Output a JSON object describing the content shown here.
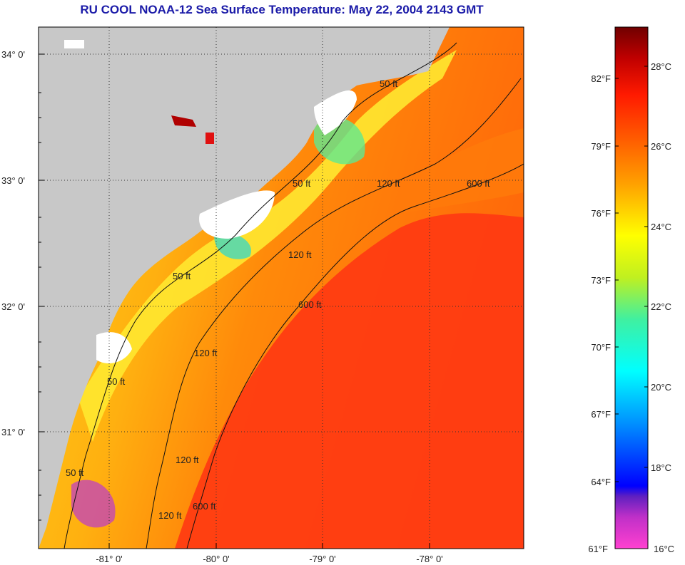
{
  "title": "RU COOL  NOAA-12  Sea Surface Temperature:  May 22, 2004 2143 GMT",
  "map": {
    "lat_labels": [
      "34° 0'",
      "33° 0'",
      "32° 0'",
      "31° 0'"
    ],
    "lon_labels": [
      "-81° 0'",
      "-80° 0'",
      "-79° 0'",
      "-78° 0'"
    ],
    "contour_labels": [
      "50 ft",
      "50 ft",
      "50 ft",
      "50 ft",
      "50 ft",
      "120 ft",
      "120 ft",
      "120 ft",
      "120 ft",
      "120 ft",
      "600 ft",
      "600 ft",
      "600 ft"
    ],
    "colors": {
      "land": "#c8c8c8",
      "cloud": "#ffffff",
      "warm": "#ff3a12",
      "mid": "#ff9a0a",
      "cool": "#ffe220",
      "cold": "#40e8a0"
    }
  },
  "colorbar": {
    "fahrenheit": [
      "82°F",
      "79°F",
      "76°F",
      "73°F",
      "70°F",
      "67°F",
      "64°F",
      "61°F"
    ],
    "celsius": [
      "28°C",
      "26°C",
      "24°C",
      "22°C",
      "20°C",
      "18°C",
      "16°C"
    ],
    "gradient": [
      "#ff40d0",
      "#8020c0",
      "#0000ff",
      "#0090ff",
      "#00ffff",
      "#40f0a0",
      "#c0f020",
      "#ffff00",
      "#ffa000",
      "#ff6000",
      "#ff2000",
      "#b00000",
      "#700000"
    ]
  }
}
